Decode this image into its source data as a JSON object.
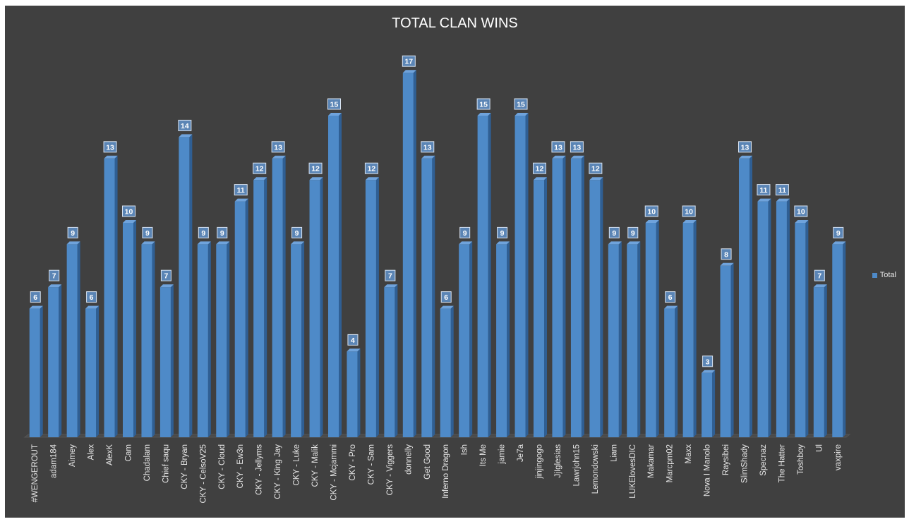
{
  "chart_data": {
    "type": "bar",
    "title": "TOTAL CLAN WINS",
    "xlabel": "",
    "ylabel": "",
    "ylim": [
      0,
      17.5
    ],
    "grid": false,
    "legend_position": "right",
    "categories": [
      "#WENGEROUT",
      "adam184",
      "Aimey",
      "Alex",
      "AlexK",
      "Cam",
      "Chadalam",
      "Chief saqu",
      "CKY - Bryan",
      "CKY - CelsoV25",
      "CKY - Cloud",
      "CKY - Ew3n",
      "CKY - Jellyms",
      "CKY - King Jay",
      "CKY - Luke",
      "CKY - Malik",
      "CKY - Mcjammi",
      "CKY - Pro",
      "CKY - Sam",
      "CKY - Viggers",
      "donnelly",
      "Get Good",
      "Inferno Dragon",
      "Ish",
      "Its Me",
      "jamie",
      "Je7a",
      "jinjingogo",
      "JjIglesias",
      "Lawrjohn15",
      "Lemondowski",
      "Liam",
      "LUKElovesDIC",
      "Makamar",
      "Marcpm02",
      "Maxx",
      "Nova I Manolo",
      "Raysibei",
      "SlimShady",
      "Specnaz",
      "The Hatter",
      "Toshboy",
      "Ul",
      "vaxpire"
    ],
    "series": [
      {
        "name": "Total",
        "values": [
          6,
          7,
          9,
          6,
          13,
          10,
          9,
          7,
          14,
          9,
          9,
          11,
          12,
          13,
          9,
          12,
          15,
          4,
          12,
          7,
          17,
          13,
          6,
          9,
          15,
          9,
          15,
          12,
          13,
          13,
          12,
          9,
          9,
          10,
          6,
          10,
          3,
          8,
          13,
          11,
          11,
          10,
          7,
          9
        ]
      }
    ],
    "colors": {
      "bar": "#4e8ac8",
      "bar_side": "#2f5f94",
      "background": "#404040",
      "label_box": "#5b85b5",
      "text": "#ffffff"
    }
  }
}
